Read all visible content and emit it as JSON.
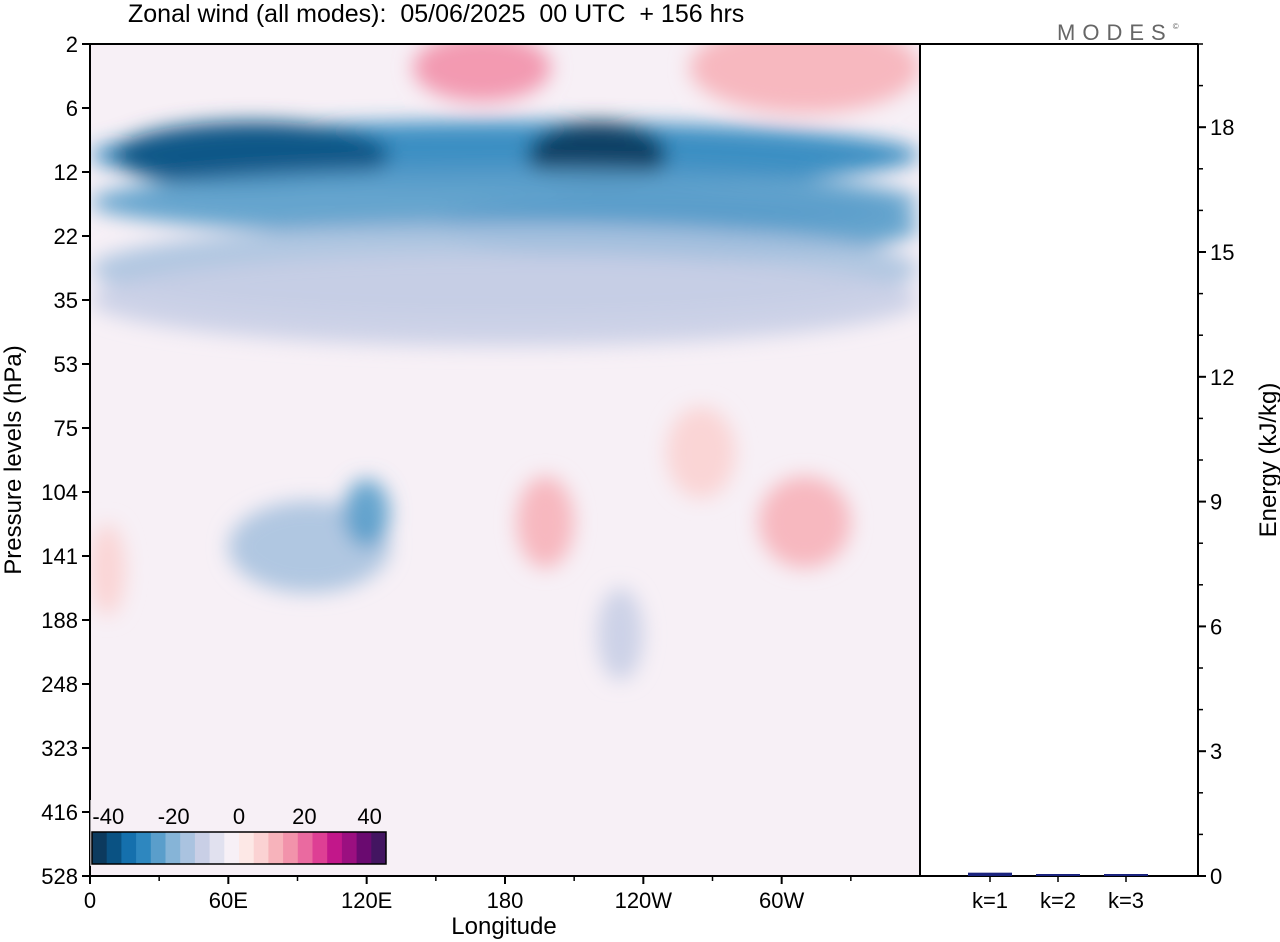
{
  "title": "Zonal wind (all modes):  05/06/2025  00 UTC  + 156 hrs",
  "brand": "MODES",
  "brand_mark": "©",
  "colors": {
    "scale": [
      "#0c3a5e",
      "#0a5283",
      "#1570ad",
      "#2e87bf",
      "#5a9ecb",
      "#86b4d7",
      "#aac3e0",
      "#c9cfe6",
      "#e1e1ef",
      "#f7f0f6",
      "#fde8e6",
      "#fbd2d3",
      "#f7b3bb",
      "#f293ab",
      "#ea6aa0",
      "#de3f94",
      "#c2178a",
      "#9b0f80",
      "#6a0a70",
      "#431561"
    ],
    "background": "#f7f0f6",
    "axis": "#000000",
    "energy_bar": "#1a237e"
  },
  "chart_data": [
    {
      "type": "heatmap",
      "title": "Zonal wind (all modes):  05/06/2025  00 UTC  + 156 hrs",
      "xlabel": "Longitude",
      "ylabel": "Pressure levels (hPa)",
      "x_ticks": [
        "0",
        "60E",
        "120E",
        "180",
        "120W",
        "60W"
      ],
      "x_tick_values": [
        0,
        60,
        120,
        180,
        240,
        300
      ],
      "xlim": [
        0,
        360
      ],
      "y_ticks": [
        "2",
        "6",
        "12",
        "22",
        "35",
        "53",
        "75",
        "104",
        "141",
        "188",
        "248",
        "323",
        "416",
        "528"
      ],
      "colorbar": {
        "labels": [
          "-40",
          "-20",
          "0",
          "20",
          "40"
        ],
        "min": -45,
        "max": 45,
        "step": 5
      },
      "regions": [
        {
          "level": "10",
          "lon": [
            0,
            360
          ],
          "value": -30
        },
        {
          "level": "10",
          "lon": [
            10,
            130
          ],
          "value": -38
        },
        {
          "level": "10",
          "lon": [
            190,
            250
          ],
          "value": -41
        },
        {
          "level": "16",
          "lon": [
            0,
            360
          ],
          "value": -25
        },
        {
          "level": "20",
          "lon": [
            150,
            360
          ],
          "value": -25
        },
        {
          "level": "28",
          "lon": [
            0,
            360
          ],
          "value": -15
        },
        {
          "level": "35",
          "lon": [
            0,
            360
          ],
          "value": -7
        },
        {
          "level": "3",
          "lon": [
            140,
            200
          ],
          "value": 22
        },
        {
          "level": "3",
          "lon": [
            260,
            360
          ],
          "value": 15
        },
        {
          "level": "135",
          "lon": [
            60,
            130
          ],
          "value": -15
        },
        {
          "level": "115",
          "lon": [
            110,
            130
          ],
          "value": -22
        },
        {
          "level": "120",
          "lon": [
            185,
            210
          ],
          "value": 15
        },
        {
          "level": "120",
          "lon": [
            290,
            330
          ],
          "value": 17
        },
        {
          "level": "85",
          "lon": [
            250,
            280
          ],
          "value": 12
        },
        {
          "level": "150",
          "lon": [
            0,
            15
          ],
          "value": 12
        },
        {
          "level": "200",
          "lon": [
            220,
            240
          ],
          "value": -6
        }
      ]
    },
    {
      "type": "bar",
      "ylabel": "Energy (kJ/kg)",
      "categories": [
        "k=1",
        "k=2",
        "k=3"
      ],
      "values": [
        0.08,
        0.03,
        0.02
      ],
      "ylim": [
        0,
        20
      ],
      "y_ticks": [
        "0",
        "3",
        "6",
        "9",
        "12",
        "15",
        "18"
      ],
      "y_tick_values": [
        0,
        3,
        6,
        9,
        12,
        15,
        18
      ]
    }
  ]
}
